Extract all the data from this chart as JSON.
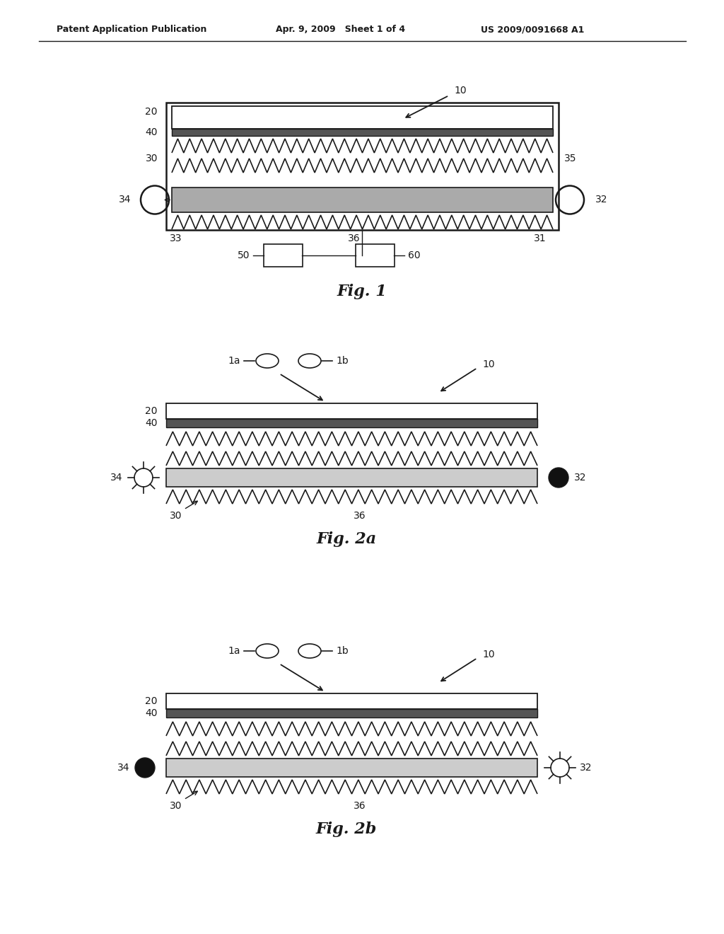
{
  "bg_color": "#ffffff",
  "header_text": "Patent Application Publication",
  "header_date": "Apr. 9, 2009   Sheet 1 of 4",
  "header_patent": "US 2009/0091668 A1",
  "fig1_label": "Fig. 1",
  "fig2a_label": "Fig. 2a",
  "fig2b_label": "Fig. 2b",
  "line_color": "#1a1a1a",
  "fill_black": "#111111"
}
